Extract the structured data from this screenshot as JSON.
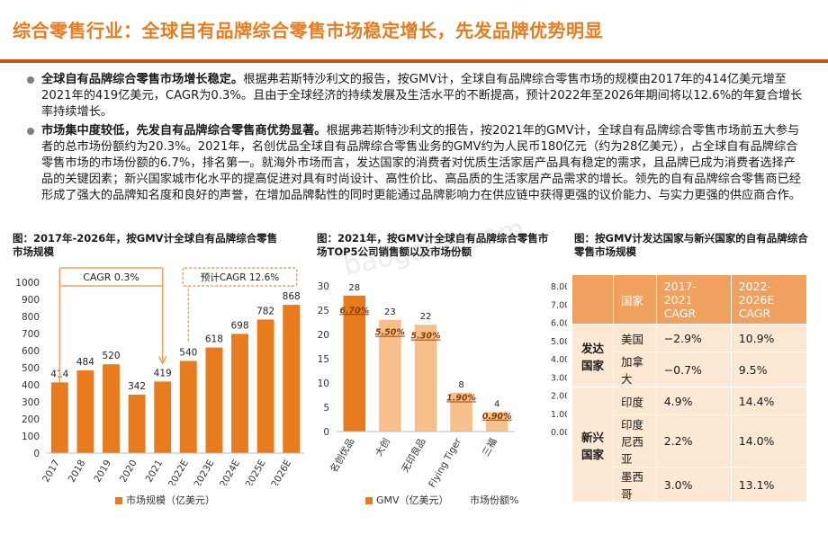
{
  "title": "综合零售行业：全球自有品牌综合零售市场稳定增长，先发品牌优势明显",
  "bullets": [
    {
      "bold": "全球自有品牌综合零售市场增长稳定。",
      "text": "根据弗若斯特沙利文的报告，按GMV计，全球自有品牌综合零售市场的规模由2017年的414亿美元增至2021年的419亿美元，CAGR为0.3%。且由于全球经济的持续发展及生活水平的不断提高，预计2022年至2026年期间将以12.6%的年复合增长率持续增长。"
    },
    {
      "bold": "市场集中度较低，先发自有品牌综合零售商优势显著。",
      "text": "根据弗若斯特沙利文的报告，按2021年的GMV计，全球自有品牌综合零售市场前五大参与者的总市场份额约为20.3%。2021年，名创优品全球自有品牌综合零售业务的GMV约为人民币180亿元（约为28亿美元），占全球自有品牌综合零售市场的市场份额的6.7%，排名第一。就海外市场而言，发达国家的消费者对优质生活家居产品具有稳定的需求，且品牌已成为消费者选择产品的关键因素；新兴国家城市化水平的提高促进对具有时尚设计、高性价比、高品质的生活家居产品需求的增长。领先的自有品牌综合零售商已经形成了强大的品牌知名度和良好的声誉，在增加品牌黏性的同时更能通过品牌影响力在供应链中获得更强的议价能力、与实力更强的供应商合作。"
    }
  ],
  "watermark": "baogao8.com",
  "fig1": {
    "title": "图：2017年-2026年，按GMV计全球自有品牌综合零售市场规模",
    "cagr1": "CAGR 0.3%",
    "cagr2": "预计CAGR 12.6%",
    "legend": "市场规模（亿美元）"
  },
  "fig2": {
    "title": "图：2021年，按GMV计全球自有品牌综合零售市场TOP5公司销售额以及市场份额",
    "legend_gmv": "GMV（亿美元）",
    "legend_share": "市场份额%"
  },
  "fig3": {
    "title": "图：按GMV计发达国家与新兴国家的自有品牌综合零售市场规模",
    "headers": [
      "国家",
      "2017-2021 CAGR",
      "2022-2026E CAGR"
    ],
    "groups": [
      {
        "name": "发达国家",
        "rows": [
          [
            "美国",
            "−2.9%",
            "10.9%"
          ],
          [
            "加拿大",
            "−0.7%",
            "9.5%"
          ]
        ]
      },
      {
        "name": "新兴国家",
        "rows": [
          [
            "印度",
            "4.9%",
            "14.4%"
          ],
          [
            "印度尼西亚",
            "2.2%",
            "14.0%"
          ],
          [
            "墨西哥",
            "3.0%",
            "13.1%"
          ]
        ]
      }
    ]
  },
  "chart_data": [
    {
      "type": "bar",
      "categories": [
        "2017",
        "2018",
        "2019",
        "2020",
        "2021",
        "2022E",
        "2023E",
        "2024E",
        "2025E",
        "2026E"
      ],
      "values": [
        414,
        484,
        520,
        342,
        419,
        540,
        618,
        698,
        782,
        868
      ],
      "ylim": [
        0,
        1000
      ],
      "yticks": [
        0,
        100,
        200,
        300,
        400,
        500,
        600,
        700,
        800,
        900,
        1000
      ],
      "series_name": "市场规模（亿美元）",
      "color": "#e87b1e"
    },
    {
      "type": "bar",
      "categories": [
        "名创优品",
        "大创",
        "无印良品",
        "Flying Tiger",
        "三福"
      ],
      "series": [
        {
          "name": "GMV（亿美元）",
          "values": [
            28,
            23,
            22,
            8,
            4
          ]
        },
        {
          "name": "市场份额%",
          "values": [
            6.7,
            5.5,
            5.3,
            1.9,
            0.9
          ]
        }
      ],
      "share_labels": [
        "6.70%",
        "5.50%",
        "5.30%",
        "1.90%",
        "0.90%"
      ],
      "ylim": [
        0,
        30
      ],
      "yticks": [
        0,
        5,
        10,
        15,
        20,
        25,
        30
      ],
      "y2lim": [
        0,
        8
      ],
      "y2ticks": [
        "0.00%",
        "1.00%",
        "2.00%",
        "3.00%",
        "4.00%",
        "5.00%",
        "6.00%",
        "7.00%",
        "8.00%"
      ],
      "colors": [
        "#e87b1e",
        "#f7c08a"
      ]
    }
  ]
}
